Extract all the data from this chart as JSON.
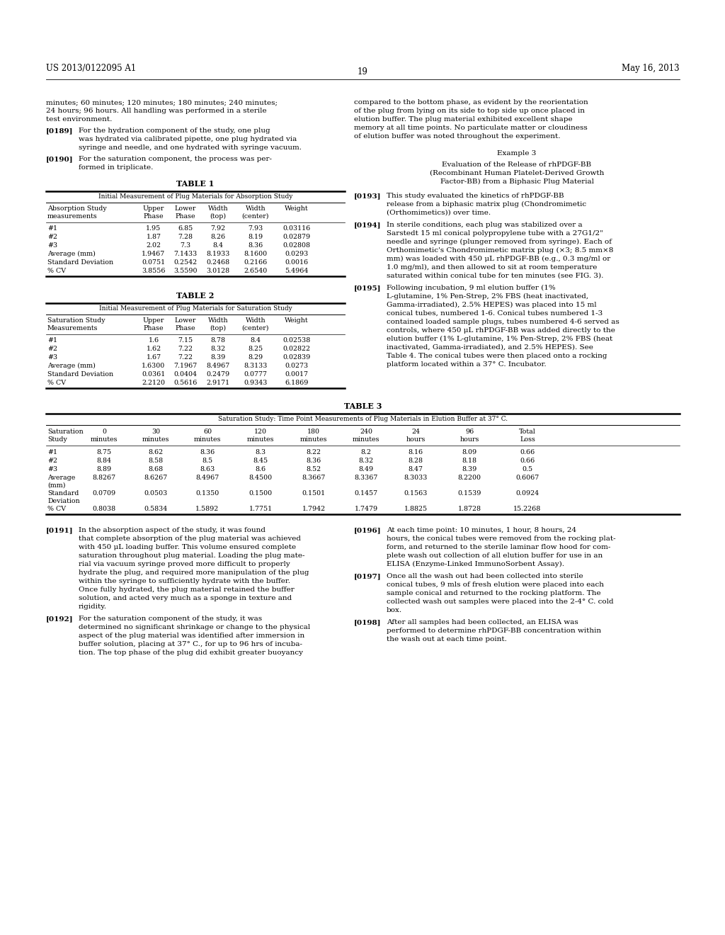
{
  "background_color": "#ffffff",
  "page_header_left": "US 2013/0122095 A1",
  "page_header_right": "May 16, 2013",
  "page_number": "19",
  "table1_title": "TABLE 1",
  "table1_subtitle": "Initial Measurement of Plug Materials for Absorption Study",
  "table1_rows": [
    [
      "#1",
      "1.95",
      "6.85",
      "7.92",
      "7.93",
      "0.03116"
    ],
    [
      "#2",
      "1.87",
      "7.28",
      "8.26",
      "8.19",
      "0.02879"
    ],
    [
      "#3",
      "2.02",
      "7.3",
      "8.4",
      "8.36",
      "0.02808"
    ],
    [
      "Average (mm)",
      "1.9467",
      "7.1433",
      "8.1933",
      "8.1600",
      "0.0293"
    ],
    [
      "Standard Deviation",
      "0.0751",
      "0.2542",
      "0.2468",
      "0.2166",
      "0.0016"
    ],
    [
      "% CV",
      "3.8556",
      "3.5590",
      "3.0128",
      "2.6540",
      "5.4964"
    ]
  ],
  "table2_title": "TABLE 2",
  "table2_subtitle": "Initial Measurement of Plug Materials for Saturation Study",
  "table2_rows": [
    [
      "#1",
      "1.6",
      "7.15",
      "8.78",
      "8.4",
      "0.02538"
    ],
    [
      "#2",
      "1.62",
      "7.22",
      "8.32",
      "8.25",
      "0.02822"
    ],
    [
      "#3",
      "1.67",
      "7.22",
      "8.39",
      "8.29",
      "0.02839"
    ],
    [
      "Average (mm)",
      "1.6300",
      "7.1967",
      "8.4967",
      "8.3133",
      "0.0273"
    ],
    [
      "Standard Deviation",
      "0.0361",
      "0.0404",
      "0.2479",
      "0.0777",
      "0.0017"
    ],
    [
      "% CV",
      "2.2120",
      "0.5616",
      "2.9171",
      "0.9343",
      "6.1869"
    ]
  ],
  "table3_title": "TABLE 3",
  "table3_subtitle": "Saturation Study: Time Point Measurements of Plug Materials in Elution Buffer at 37° C.",
  "table3_time_headers_line1": [
    "0",
    "30",
    "60",
    "120",
    "180",
    "240",
    "24",
    "96",
    "Total"
  ],
  "table3_time_headers_line2": [
    "minutes",
    "minutes",
    "minutes",
    "minutes",
    "minutes",
    "minutes",
    "hours",
    "hours",
    "Loss"
  ],
  "table3_rows": [
    [
      "#1",
      "8.75",
      "8.62",
      "8.36",
      "8.3",
      "8.22",
      "8.2",
      "8.16",
      "8.09",
      "0.66"
    ],
    [
      "#2",
      "8.84",
      "8.58",
      "8.5",
      "8.45",
      "8.36",
      "8.32",
      "8.28",
      "8.18",
      "0.66"
    ],
    [
      "#3",
      "8.89",
      "8.68",
      "8.63",
      "8.6",
      "8.52",
      "8.49",
      "8.47",
      "8.39",
      "0.5"
    ],
    [
      "Average\n(mm)",
      "8.8267",
      "8.6267",
      "8.4967",
      "8.4500",
      "8.3667",
      "8.3367",
      "8.3033",
      "8.2200",
      "0.6067"
    ],
    [
      "Standard\nDeviation",
      "0.0709",
      "0.0503",
      "0.1350",
      "0.1500",
      "0.1501",
      "0.1457",
      "0.1563",
      "0.1539",
      "0.0924"
    ],
    [
      "% CV",
      "0.8038",
      "0.5834",
      "1.5892",
      "1.7751",
      "1.7942",
      "1.7479",
      "1.8825",
      "1.8728",
      "15.2268"
    ]
  ]
}
